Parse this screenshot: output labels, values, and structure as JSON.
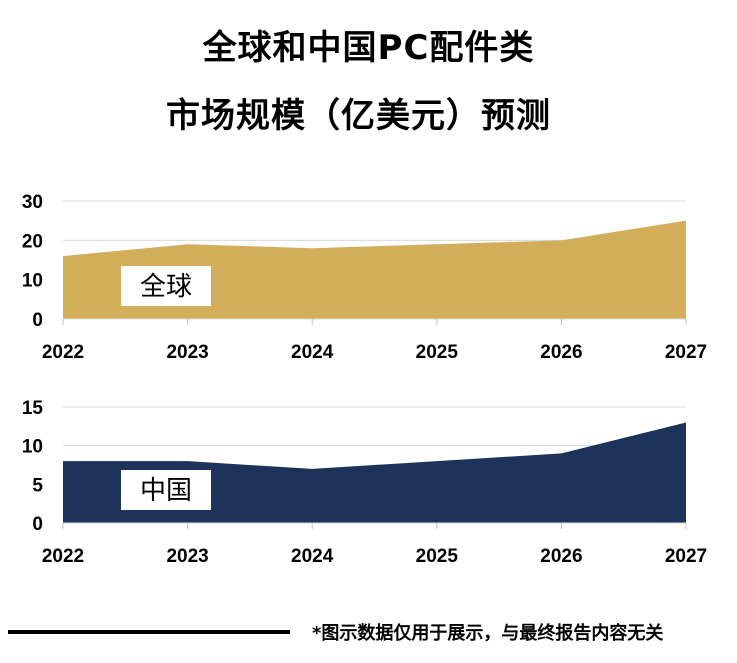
{
  "title_line1": "全球和中国PC配件类",
  "title_line2": "市场规模（亿美元）预测",
  "footnote": "*图示数据仅用于展示，与最终报告内容无关",
  "colors": {
    "global": "#d2ad5a",
    "china": "#1e335a",
    "grid": "#d9d9d9"
  },
  "chart_data": [
    {
      "type": "area",
      "region_label": "全球",
      "x": [
        "2022",
        "2023",
        "2024",
        "2025",
        "2026",
        "2027"
      ],
      "values": [
        16,
        19,
        18,
        19,
        20,
        25
      ],
      "ylim": [
        0,
        30
      ],
      "yticks": [
        0,
        10,
        20,
        30
      ],
      "grid": true
    },
    {
      "type": "area",
      "region_label": "中国",
      "x": [
        "2022",
        "2023",
        "2024",
        "2025",
        "2026",
        "2027"
      ],
      "values": [
        8,
        8,
        7,
        8,
        9,
        13
      ],
      "ylim": [
        0,
        15
      ],
      "yticks": [
        0,
        5,
        10,
        15
      ],
      "grid": true
    }
  ]
}
